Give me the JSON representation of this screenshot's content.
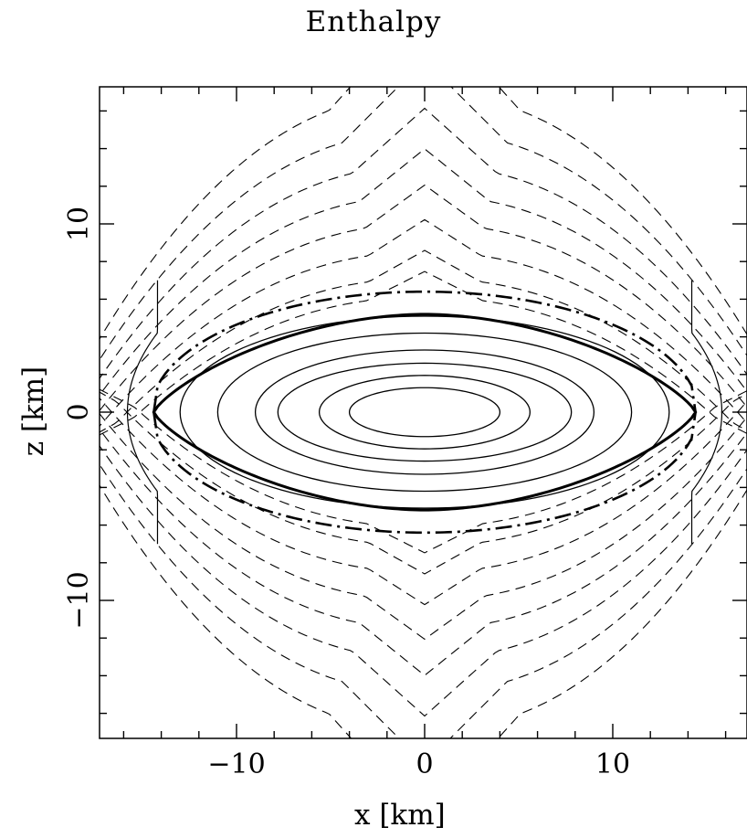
{
  "chart_data": {
    "type": "contour",
    "title": "Enthalpy",
    "xlabel": "x [km]",
    "ylabel": "z [km]",
    "xlim": [
      -17.3,
      17.3
    ],
    "ylim": [
      -17.3,
      17.3
    ],
    "xticks": [
      -10,
      0,
      10
    ],
    "yticks": [
      -10,
      0,
      10
    ],
    "x_tick_labels": [
      "−10",
      "0",
      "10"
    ],
    "y_tick_labels": [
      "−10",
      "0",
      "10"
    ],
    "grid": false,
    "legend": "none",
    "surface": {
      "style": "thick solid",
      "half_width": 14.4,
      "half_height": 5.2
    },
    "dash_dot_boundary": {
      "style": "dash-dot",
      "half_width": 14.4,
      "half_height": 6.4
    },
    "interior_contours_semi_axes": [
      [
        13.0,
        5.1
      ],
      [
        11.0,
        4.2
      ],
      [
        9.0,
        3.3
      ],
      [
        7.8,
        2.6
      ],
      [
        5.6,
        1.95
      ],
      [
        4.0,
        1.3
      ]
    ],
    "outer_contour_offsets": [
      {
        "offset": 0.9,
        "style": "dashed",
        "y_axis_crossing": 6.1
      },
      {
        "offset": 1.9,
        "style": "dashed",
        "y_axis_crossing": 7.1
      },
      {
        "offset": 3.3,
        "style": "dashed",
        "y_axis_crossing": 8.5
      },
      {
        "offset": 4.8,
        "style": "dashed",
        "y_axis_crossing": 10.0
      },
      {
        "offset": 6.3,
        "style": "dashed",
        "y_axis_crossing": 11.5
      },
      {
        "offset": 7.9,
        "style": "dashed",
        "y_axis_crossing": 13.1
      },
      {
        "offset": 9.7,
        "style": "dashed",
        "y_axis_crossing": 14.9
      },
      {
        "offset": 11.7,
        "style": "dashed",
        "y_axis_crossing": 16.9
      }
    ],
    "side_contour": {
      "style": "solid",
      "x_at_axis": 15.8
    }
  }
}
